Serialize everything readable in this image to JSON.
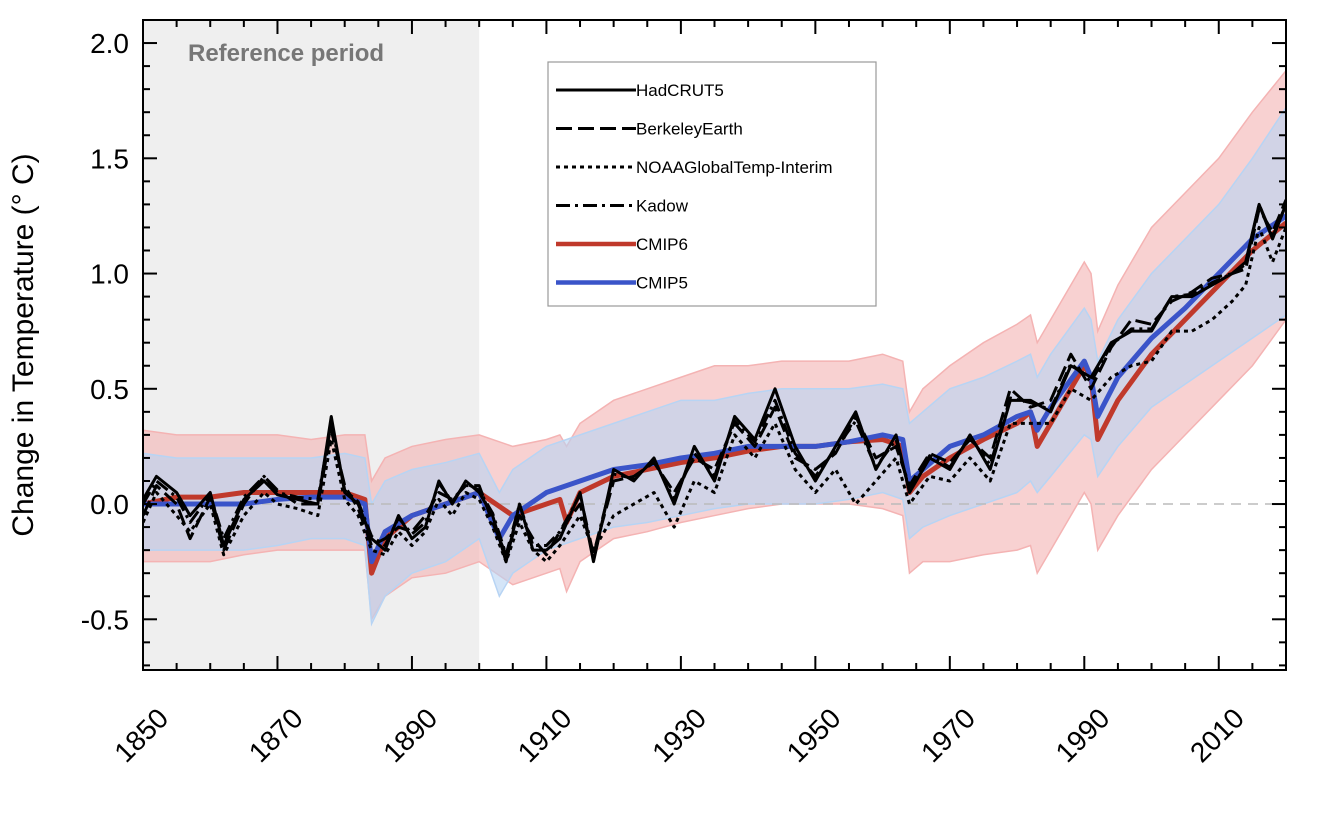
{
  "chart_data": {
    "type": "line",
    "title": "",
    "xlabel": "",
    "ylabel": "Change in Temperature (° C)",
    "xlim": [
      1850,
      2020
    ],
    "ylim": [
      -0.72,
      2.1
    ],
    "x_ticks": [
      1850,
      1870,
      1890,
      1910,
      1930,
      1950,
      1970,
      1990,
      2010
    ],
    "y_ticks": [
      -0.5,
      0.0,
      0.5,
      1.0,
      1.5,
      2.0
    ],
    "y_tick_labels": [
      "-0.5",
      "0.0",
      "0.5",
      "1.0",
      "1.5",
      "2.0"
    ],
    "reference_period": {
      "label": "Reference period",
      "start": 1850,
      "end": 1900,
      "color": "#efefef"
    },
    "zero_line": true,
    "legend_position": "top-center",
    "series": [
      {
        "name": "HadCRUT5",
        "color": "#000000",
        "style": "solid",
        "x": [
          1850,
          1852,
          1855,
          1857,
          1860,
          1862,
          1865,
          1868,
          1870,
          1873,
          1876,
          1878,
          1880,
          1882,
          1884,
          1886,
          1888,
          1890,
          1892,
          1894,
          1896,
          1898,
          1900,
          1902,
          1904,
          1906,
          1908,
          1910,
          1912,
          1915,
          1917,
          1920,
          1923,
          1926,
          1929,
          1932,
          1935,
          1938,
          1941,
          1944,
          1947,
          1950,
          1953,
          1956,
          1959,
          1962,
          1964,
          1967,
          1970,
          1973,
          1976,
          1979,
          1982,
          1985,
          1988,
          1991,
          1994,
          1997,
          2000,
          2003,
          2006,
          2009,
          2012,
          2014,
          2016,
          2018,
          2020
        ],
        "y": [
          0.02,
          0.12,
          0.05,
          -0.05,
          0.05,
          -0.18,
          0.02,
          0.1,
          0.04,
          0.02,
          0.0,
          0.38,
          0.05,
          0.0,
          -0.15,
          -0.2,
          -0.05,
          -0.15,
          -0.1,
          0.1,
          0.0,
          0.1,
          0.05,
          -0.05,
          -0.25,
          0.0,
          -0.2,
          -0.2,
          -0.15,
          0.05,
          -0.25,
          0.15,
          0.1,
          0.2,
          0.0,
          0.25,
          0.1,
          0.38,
          0.28,
          0.5,
          0.25,
          0.1,
          0.25,
          0.4,
          0.15,
          0.3,
          0.05,
          0.2,
          0.15,
          0.3,
          0.15,
          0.45,
          0.45,
          0.4,
          0.6,
          0.55,
          0.7,
          0.75,
          0.75,
          0.9,
          0.9,
          0.95,
          1.0,
          1.05,
          1.3,
          1.15,
          1.3
        ]
      },
      {
        "name": "BerkeleyEarth",
        "color": "#000000",
        "style": "dashed",
        "x": [
          1850,
          1852,
          1855,
          1857,
          1860,
          1862,
          1865,
          1868,
          1870,
          1873,
          1876,
          1878,
          1880,
          1882,
          1884,
          1886,
          1888,
          1890,
          1892,
          1894,
          1896,
          1898,
          1900,
          1902,
          1904,
          1906,
          1908,
          1910,
          1912,
          1915,
          1917,
          1920,
          1923,
          1926,
          1929,
          1932,
          1935,
          1938,
          1941,
          1944,
          1947,
          1950,
          1953,
          1956,
          1959,
          1962,
          1964,
          1967,
          1970,
          1973,
          1976,
          1979,
          1982,
          1985,
          1988,
          1991,
          1994,
          1997,
          2000,
          2003,
          2006,
          2009,
          2012,
          2014,
          2016,
          2018,
          2020
        ],
        "y": [
          -0.05,
          0.08,
          0.0,
          -0.15,
          0.03,
          -0.2,
          0.0,
          0.12,
          0.06,
          0.0,
          0.0,
          0.32,
          0.08,
          -0.02,
          -0.18,
          -0.15,
          -0.1,
          -0.12,
          -0.05,
          0.05,
          0.02,
          0.08,
          0.08,
          -0.08,
          -0.22,
          -0.05,
          -0.15,
          -0.22,
          -0.12,
          0.0,
          -0.22,
          0.1,
          0.12,
          0.18,
          0.05,
          0.2,
          0.15,
          0.35,
          0.25,
          0.42,
          0.2,
          0.15,
          0.22,
          0.38,
          0.2,
          0.25,
          0.08,
          0.22,
          0.18,
          0.28,
          0.2,
          0.5,
          0.42,
          0.45,
          0.65,
          0.5,
          0.68,
          0.8,
          0.78,
          0.88,
          0.92,
          0.98,
          1.0,
          1.02,
          1.28,
          1.18,
          1.32
        ]
      },
      {
        "name": "NOAAGlobalTemp-Interim",
        "color": "#000000",
        "style": "dotted",
        "x": [
          1850,
          1852,
          1855,
          1857,
          1860,
          1862,
          1865,
          1868,
          1870,
          1873,
          1876,
          1878,
          1880,
          1882,
          1884,
          1886,
          1888,
          1890,
          1892,
          1894,
          1896,
          1898,
          1900,
          1902,
          1904,
          1906,
          1908,
          1910,
          1912,
          1915,
          1917,
          1920,
          1923,
          1926,
          1929,
          1932,
          1935,
          1938,
          1941,
          1944,
          1947,
          1950,
          1953,
          1956,
          1959,
          1962,
          1964,
          1967,
          1970,
          1973,
          1976,
          1979,
          1982,
          1985,
          1988,
          1991,
          1994,
          1997,
          2000,
          2003,
          2006,
          2009,
          2012,
          2014,
          2016,
          2018,
          2020
        ],
        "y": [
          -0.08,
          0.05,
          -0.05,
          -0.12,
          0.0,
          -0.22,
          -0.05,
          0.05,
          0.0,
          -0.02,
          -0.05,
          0.28,
          0.02,
          -0.05,
          -0.2,
          -0.22,
          -0.12,
          -0.18,
          -0.12,
          0.02,
          -0.05,
          0.05,
          0.02,
          -0.1,
          -0.25,
          -0.08,
          -0.2,
          -0.25,
          -0.18,
          -0.05,
          -0.2,
          -0.05,
          0.0,
          0.05,
          -0.1,
          0.1,
          0.05,
          0.3,
          0.2,
          0.35,
          0.15,
          0.05,
          0.15,
          0.0,
          0.1,
          0.2,
          0.0,
          0.12,
          0.1,
          0.2,
          0.1,
          0.35,
          0.35,
          0.35,
          0.5,
          0.45,
          0.55,
          0.6,
          0.62,
          0.75,
          0.75,
          0.8,
          0.88,
          0.95,
          1.2,
          1.05,
          1.2
        ]
      },
      {
        "name": "Kadow",
        "color": "#000000",
        "style": "dashdot",
        "x": [
          1850,
          1852,
          1855,
          1857,
          1860,
          1862,
          1865,
          1868,
          1870,
          1873,
          1876,
          1878,
          1880,
          1882,
          1884,
          1886,
          1888,
          1890,
          1892,
          1894,
          1896,
          1898,
          1900,
          1902,
          1904,
          1906,
          1908,
          1910,
          1912,
          1915,
          1917,
          1920,
          1923,
          1926,
          1929,
          1932,
          1935,
          1938,
          1941,
          1944,
          1947,
          1950,
          1953,
          1956,
          1959,
          1962,
          1964,
          1967,
          1970,
          1973,
          1976,
          1979,
          1982,
          1985,
          1988,
          1991,
          1994,
          1997,
          2000,
          2003,
          2006,
          2009,
          2012,
          2014,
          2016,
          2018,
          2020
        ],
        "y": [
          0.0,
          0.1,
          0.03,
          -0.08,
          0.04,
          -0.15,
          0.03,
          0.12,
          0.05,
          0.03,
          0.02,
          0.35,
          0.06,
          0.01,
          -0.14,
          -0.18,
          -0.06,
          -0.13,
          -0.08,
          0.09,
          0.01,
          0.09,
          0.06,
          -0.04,
          -0.22,
          0.0,
          -0.18,
          -0.18,
          -0.12,
          0.04,
          -0.22,
          0.13,
          0.11,
          0.19,
          0.02,
          0.22,
          0.12,
          0.36,
          0.27,
          0.45,
          0.22,
          0.12,
          0.24,
          0.36,
          0.16,
          0.28,
          0.06,
          0.21,
          0.16,
          0.29,
          0.17,
          0.46,
          0.44,
          0.41,
          0.61,
          0.53,
          0.69,
          0.76,
          0.76,
          0.9,
          0.91,
          0.96,
          1.0,
          1.04,
          1.3,
          1.16,
          1.3
        ]
      },
      {
        "name": "CMIP6",
        "color": "#c0392b",
        "style": "solid",
        "band_color": "#f4b3b3",
        "x": [
          1850,
          1855,
          1860,
          1865,
          1870,
          1875,
          1880,
          1883,
          1884,
          1886,
          1890,
          1895,
          1900,
          1905,
          1910,
          1912,
          1913,
          1915,
          1920,
          1925,
          1930,
          1935,
          1940,
          1945,
          1950,
          1955,
          1960,
          1963,
          1964,
          1966,
          1970,
          1975,
          1980,
          1982,
          1983,
          1985,
          1990,
          1991,
          1992,
          1995,
          2000,
          2005,
          2010,
          2015,
          2020
        ],
        "y": [
          0.0,
          0.03,
          0.03,
          0.05,
          0.05,
          0.05,
          0.05,
          0.02,
          -0.3,
          -0.15,
          -0.05,
          0.0,
          0.05,
          -0.05,
          0.0,
          0.02,
          -0.08,
          0.05,
          0.12,
          0.15,
          0.18,
          0.2,
          0.23,
          0.25,
          0.25,
          0.27,
          0.28,
          0.25,
          0.05,
          0.12,
          0.2,
          0.28,
          0.35,
          0.4,
          0.25,
          0.35,
          0.6,
          0.55,
          0.28,
          0.45,
          0.65,
          0.8,
          0.95,
          1.1,
          1.22
        ],
        "upper": [
          0.32,
          0.3,
          0.3,
          0.3,
          0.3,
          0.28,
          0.3,
          0.3,
          0.1,
          0.2,
          0.25,
          0.28,
          0.3,
          0.25,
          0.28,
          0.3,
          0.25,
          0.35,
          0.45,
          0.5,
          0.55,
          0.6,
          0.6,
          0.62,
          0.62,
          0.62,
          0.65,
          0.62,
          0.4,
          0.5,
          0.6,
          0.7,
          0.78,
          0.82,
          0.7,
          0.8,
          1.05,
          1.0,
          0.75,
          0.95,
          1.2,
          1.35,
          1.5,
          1.7,
          1.88
        ],
        "lower": [
          -0.25,
          -0.25,
          -0.25,
          -0.22,
          -0.2,
          -0.2,
          -0.2,
          -0.2,
          -0.5,
          -0.4,
          -0.32,
          -0.3,
          -0.25,
          -0.35,
          -0.3,
          -0.28,
          -0.38,
          -0.25,
          -0.15,
          -0.12,
          -0.08,
          -0.05,
          -0.02,
          0.0,
          0.0,
          0.0,
          -0.02,
          -0.05,
          -0.3,
          -0.25,
          -0.25,
          -0.22,
          -0.2,
          -0.18,
          -0.3,
          -0.2,
          0.05,
          0.0,
          -0.2,
          -0.05,
          0.15,
          0.3,
          0.45,
          0.6,
          0.8
        ]
      },
      {
        "name": "CMIP5",
        "color": "#3a54c9",
        "style": "solid",
        "band_color": "#b7d4f4",
        "x": [
          1850,
          1855,
          1860,
          1865,
          1870,
          1875,
          1880,
          1883,
          1884,
          1886,
          1890,
          1895,
          1900,
          1903,
          1905,
          1910,
          1915,
          1920,
          1925,
          1930,
          1935,
          1940,
          1945,
          1950,
          1955,
          1960,
          1963,
          1964,
          1966,
          1970,
          1975,
          1980,
          1982,
          1983,
          1985,
          1990,
          1991,
          1992,
          1995,
          2000,
          2005,
          2010,
          2015,
          2020
        ],
        "y": [
          0.0,
          0.0,
          0.0,
          0.0,
          0.02,
          0.03,
          0.03,
          0.0,
          -0.25,
          -0.12,
          -0.05,
          0.0,
          0.05,
          -0.15,
          -0.05,
          0.05,
          0.1,
          0.15,
          0.17,
          0.2,
          0.22,
          0.25,
          0.25,
          0.25,
          0.27,
          0.3,
          0.28,
          0.1,
          0.15,
          0.25,
          0.3,
          0.38,
          0.4,
          0.32,
          0.42,
          0.62,
          0.55,
          0.38,
          0.55,
          0.72,
          0.85,
          1.0,
          1.15,
          1.25
        ],
        "upper": [
          0.22,
          0.2,
          0.2,
          0.2,
          0.2,
          0.2,
          0.22,
          0.2,
          0.0,
          0.1,
          0.15,
          0.18,
          0.22,
          0.05,
          0.15,
          0.25,
          0.3,
          0.35,
          0.4,
          0.45,
          0.45,
          0.48,
          0.5,
          0.5,
          0.5,
          0.52,
          0.5,
          0.35,
          0.4,
          0.5,
          0.55,
          0.62,
          0.65,
          0.55,
          0.65,
          0.85,
          0.8,
          0.62,
          0.8,
          1.0,
          1.15,
          1.3,
          1.5,
          1.72
        ],
        "lower": [
          -0.2,
          -0.2,
          -0.2,
          -0.2,
          -0.18,
          -0.15,
          -0.15,
          -0.18,
          -0.52,
          -0.4,
          -0.3,
          -0.25,
          -0.15,
          -0.4,
          -0.3,
          -0.2,
          -0.15,
          -0.1,
          -0.08,
          -0.05,
          -0.02,
          0.0,
          0.0,
          0.0,
          0.02,
          0.05,
          0.02,
          -0.15,
          -0.1,
          -0.05,
          0.0,
          0.05,
          0.1,
          0.05,
          0.12,
          0.3,
          0.28,
          0.12,
          0.25,
          0.42,
          0.52,
          0.62,
          0.72,
          0.82
        ]
      }
    ]
  }
}
